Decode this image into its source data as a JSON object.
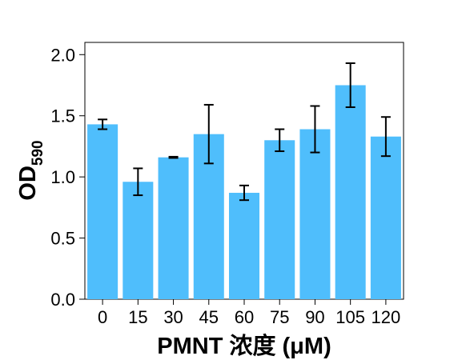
{
  "chart_data": {
    "type": "bar",
    "title": "",
    "xlabel": "PMNT 浓度 (μM)",
    "ylabel_main": "OD",
    "ylabel_sub": "590",
    "categories": [
      "0",
      "15",
      "30",
      "45",
      "60",
      "75",
      "90",
      "105",
      "120"
    ],
    "values": [
      1.43,
      0.96,
      1.16,
      1.35,
      0.87,
      1.3,
      1.39,
      1.75,
      1.33
    ],
    "errors": [
      0.04,
      0.11,
      0.005,
      0.24,
      0.06,
      0.09,
      0.19,
      0.18,
      0.16
    ],
    "ylim": [
      0,
      2.1
    ],
    "yticks": [
      "0.0",
      "0.5",
      "1.0",
      "1.5",
      "2.0"
    ],
    "ytick_values": [
      0,
      0.5,
      1.0,
      1.5,
      2.0
    ],
    "grid": false,
    "legend": "none",
    "bar_color": "#4fbefc",
    "error_bar_color": "#000000"
  }
}
